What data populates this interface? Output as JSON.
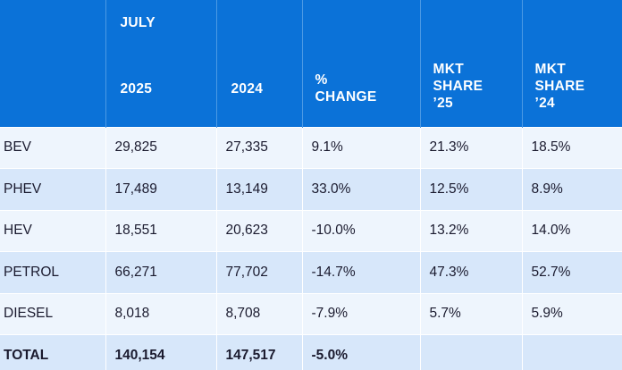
{
  "header": {
    "group_label": "JULY",
    "columns": [
      "",
      "2025",
      "2024",
      "% CHANGE",
      "MKT SHARE ’25",
      "MKT SHARE ’24"
    ],
    "col2_line1": "2025",
    "col3_line1": "2024",
    "col4_line1": "%",
    "col4_line2": "CHANGE",
    "col5_line1": "MKT",
    "col5_line2": "SHARE",
    "col5_line3": "’25",
    "col6_line1": "MKT",
    "col6_line2": "SHARE",
    "col6_line3": "’24"
  },
  "rows": [
    {
      "label": "BEV",
      "y2025": "29,825",
      "y2024": "27,335",
      "change": "9.1%",
      "share25": "21.3%",
      "share24": "18.5%"
    },
    {
      "label": "PHEV",
      "y2025": "17,489",
      "y2024": "13,149",
      "change": "33.0%",
      "share25": "12.5%",
      "share24": "8.9%"
    },
    {
      "label": "HEV",
      "y2025": "18,551",
      "y2024": "20,623",
      "change": "-10.0%",
      "share25": "13.2%",
      "share24": "14.0%"
    },
    {
      "label": "PETROL",
      "y2025": "66,271",
      "y2024": "77,702",
      "change": "-14.7%",
      "share25": "47.3%",
      "share24": "52.7%"
    },
    {
      "label": "DIESEL",
      "y2025": "8,018",
      "y2024": "8,708",
      "change": "-7.9%",
      "share25": "5.7%",
      "share24": "5.9%"
    },
    {
      "label": "TOTAL",
      "y2025": "140,154",
      "y2024": "147,517",
      "change": "-5.0%",
      "share25": "",
      "share24": ""
    }
  ],
  "colors": {
    "header_bg": "#0b72d8",
    "row_light": "#eef5fd",
    "row_dark": "#d7e7fa"
  }
}
